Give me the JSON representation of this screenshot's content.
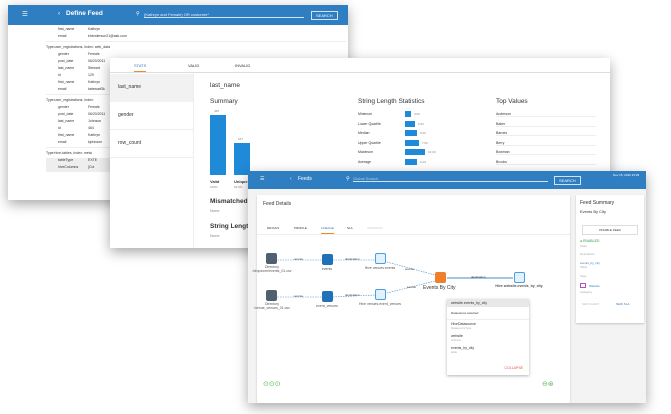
{
  "win1": {
    "title": "Define Feed",
    "search_value": "(Kathryn and Female) OR customer*",
    "search_label": "SEARCH",
    "records": [
      {
        "header": "",
        "rows": [
          [
            "first_name",
            "Kathryn"
          ],
          [
            "email",
            "khenderson21@ask.com"
          ]
        ]
      },
      {
        "header": "Type:user_registrations, Index: web_data",
        "rows": [
          [
            "gender",
            "Female"
          ],
          [
            "post_date",
            "06/20/2011"
          ],
          [
            "last_name",
            "Stewart"
          ],
          [
            "id",
            "129"
          ],
          [
            "first_name",
            "Kathryn"
          ],
          [
            "email",
            "kstewart3k"
          ]
        ]
      },
      {
        "header": "Type:user_registrations, Index:",
        "rows": [
          [
            "gender",
            "Female"
          ],
          [
            "post_date",
            "06/20/2011"
          ],
          [
            "last_name",
            "Johnson"
          ],
          [
            "id",
            "464"
          ],
          [
            "first_name",
            "Kathryn"
          ],
          [
            "email",
            "kjohnson"
          ]
        ]
      },
      {
        "header": "Type:hive-tables, Index: meta",
        "rows": [
          [
            "tableType",
            "EXTE"
          ],
          [
            "hiveColumns",
            "[Col"
          ]
        ]
      }
    ]
  },
  "win2": {
    "tabs": [
      "STATS",
      "VALID",
      "INVALID"
    ],
    "fields": [
      "last_name",
      "gender",
      "row_count"
    ],
    "field_title": "last_name",
    "summary_title": "Summary",
    "summary_bars": [
      {
        "label": "Valid",
        "pct": "100%",
        "value": "465"
      },
      {
        "label": "Unique",
        "pct": "92.9%",
        "value": "247"
      }
    ],
    "mismatched_title": "Mismatched",
    "mismatched_value": "None",
    "stringlen_title": "String Length",
    "stringlen_value": "None",
    "sls_title": "String Length Statistics",
    "sls": [
      {
        "label": "Minimum",
        "value": "3.00"
      },
      {
        "label": "Lower Quartile",
        "value": "5.00"
      },
      {
        "label": "Median",
        "value": "6.00"
      },
      {
        "label": "Upper Quartile",
        "value": "7.00"
      },
      {
        "label": "Maximum",
        "value": "10.00"
      },
      {
        "label": "Average",
        "value": "6.04"
      }
    ],
    "top_title": "Top Values",
    "top": [
      "Anderson",
      "Baker",
      "Barnes",
      "Berry",
      "Bowman",
      "Brooks"
    ]
  },
  "win3": {
    "title": "Feeds",
    "search_placeholder": "Global Search",
    "search_label": "SEARCH",
    "datetime": "Nov 15, 2016 15:29",
    "details_title": "Feed Details",
    "tabs": [
      "DETAILS",
      "PROFILE",
      "LINEAGE",
      "SLA",
      "VERSIONS"
    ],
    "nodes": {
      "dir1": "Directory /dropzone/events_01.csv",
      "events": "events",
      "hive1": "Hive venues.events",
      "dir2": "Directory /venue_venues_01.csv",
      "event_venues": "event_venues",
      "hive2": "Hive venues.event_venues",
      "center": "Events By City",
      "dest": "Hive website.events_by_city"
    },
    "edges": {
      "source": "source",
      "destination": "destination"
    },
    "popup": {
      "title": "website.events_by_city",
      "select": "Datasource selected",
      "rows": [
        [
          "HiveDatasource",
          "DatasourceType"
        ],
        [
          "website",
          "schema"
        ],
        [
          "events_by_city",
          "table"
        ]
      ],
      "collapse": "COLLAPSE"
    },
    "summary": {
      "title": "Feed Summary",
      "subtitle": "Events By City",
      "disable": "DISABLE FEED",
      "status": "ENABLED",
      "status_label": "State",
      "desc": "Description",
      "table": "events_by_city",
      "table_label": "Table",
      "tags": "Tags",
      "category": "Website",
      "category_label": "Category",
      "new_alert": "NEW ALERT",
      "new_sla": "NEW SLA"
    }
  }
}
